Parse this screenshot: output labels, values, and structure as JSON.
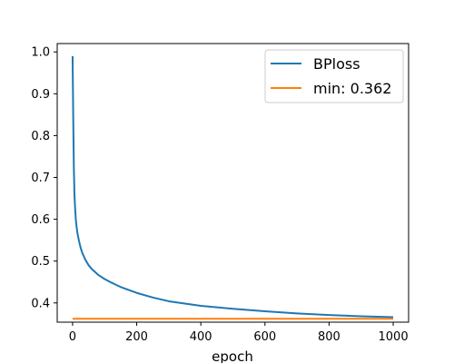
{
  "chart_data": {
    "type": "line",
    "title": "",
    "xlabel": "epoch",
    "ylabel": "",
    "xlim": [
      -48,
      1048
    ],
    "ylim": [
      0.354,
      1.02
    ],
    "x_ticks": [
      0,
      200,
      400,
      600,
      800,
      1000
    ],
    "y_ticks": [
      0.4,
      0.5,
      0.6,
      0.7,
      0.8,
      0.9,
      1.0
    ],
    "x_tick_labels": [
      "0",
      "200",
      "400",
      "600",
      "800",
      "1000"
    ],
    "y_tick_labels": [
      "0.4",
      "0.5",
      "0.6",
      "0.7",
      "0.8",
      "0.9",
      "1.0"
    ],
    "grid": false,
    "legend_position": "top-right",
    "series": [
      {
        "name": "BPloss",
        "color": "#1f77b4",
        "x": [
          0,
          2,
          4,
          6,
          8,
          10,
          12,
          15,
          20,
          25,
          30,
          40,
          50,
          60,
          80,
          100,
          120,
          150,
          200,
          250,
          300,
          400,
          500,
          600,
          700,
          800,
          900,
          1000
        ],
        "y": [
          0.99,
          0.84,
          0.72,
          0.655,
          0.625,
          0.6,
          0.585,
          0.567,
          0.548,
          0.532,
          0.52,
          0.503,
          0.49,
          0.481,
          0.467,
          0.457,
          0.449,
          0.438,
          0.424,
          0.413,
          0.404,
          0.393,
          0.386,
          0.38,
          0.375,
          0.371,
          0.368,
          0.366
        ]
      },
      {
        "name": "min: 0.362",
        "color": "#ff7f0e",
        "x": [
          0,
          1000
        ],
        "y": [
          0.362,
          0.362
        ]
      }
    ]
  }
}
